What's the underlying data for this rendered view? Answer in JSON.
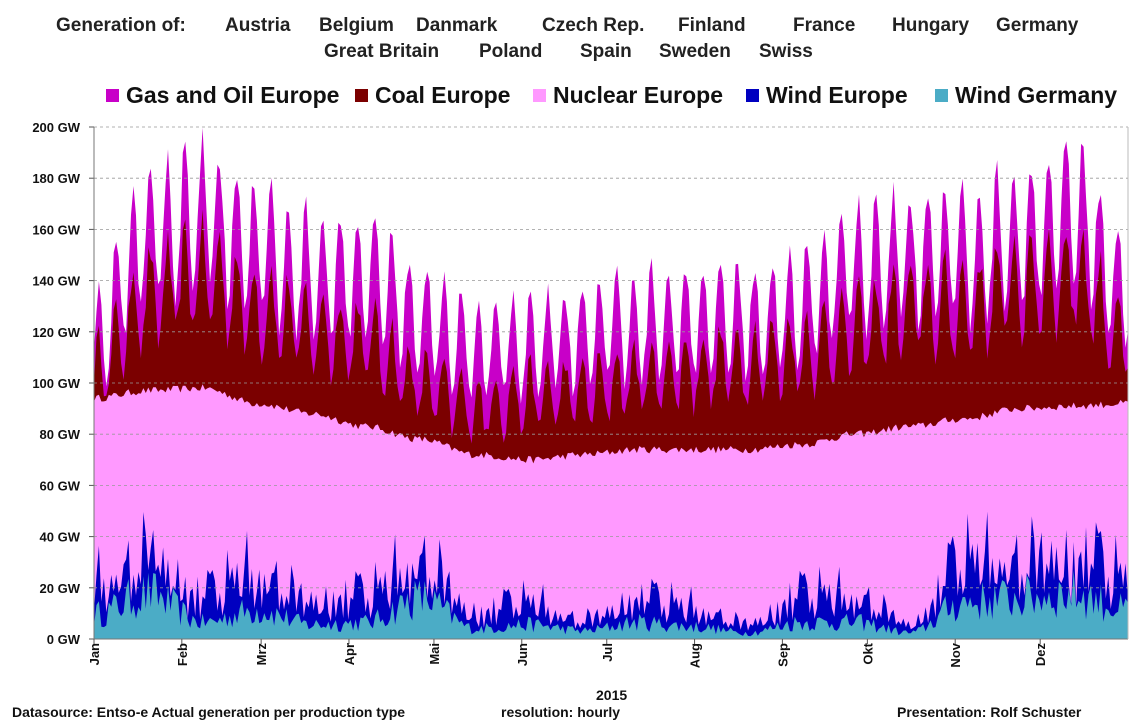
{
  "header": {
    "generation_label": "Generation of:",
    "countries": [
      "Austria",
      "Belgium",
      "Danmark",
      "Czech Rep.",
      "Finland",
      "France",
      "Hungary",
      "Germany",
      "Great Britain",
      "Poland",
      "Spain",
      "Sweden",
      "Swiss"
    ]
  },
  "colors": {
    "gas_oil": "#c800c8",
    "coal": "#7b0000",
    "nuclear": "#ff99ff",
    "wind_europe": "#0000c0",
    "wind_germany": "#4bacc6",
    "gridline": "#999999"
  },
  "footer": {
    "datasource": "Datasource: Entso-e  Actual generation per production type",
    "year": "2015",
    "resolution": "resolution: hourly",
    "presentation": "Presentation:  Rolf Schuster"
  },
  "chart_data": {
    "type": "area",
    "stacked": true,
    "title": "",
    "xlabel": "2015",
    "ylabel": "",
    "unit": "GW",
    "ylim": [
      0,
      200
    ],
    "yticks": [
      0,
      20,
      40,
      60,
      80,
      100,
      120,
      140,
      160,
      180,
      200
    ],
    "ytick_labels": [
      "0 GW",
      "20 GW",
      "40 GW",
      "60 GW",
      "80 GW",
      "100 GW",
      "120 GW",
      "140 GW",
      "160 GW",
      "180 GW",
      "200 GW"
    ],
    "x_tick_labels": [
      "Jan",
      "Feb",
      "Mrz",
      "Apr",
      "Mai",
      "Jun",
      "Jul",
      "Aug",
      "Sep",
      "Okt",
      "Nov",
      "Dez"
    ],
    "x_tick_day_of_year": [
      1,
      32,
      60,
      91,
      121,
      152,
      182,
      213,
      244,
      274,
      305,
      335
    ],
    "days_in_year": 365,
    "legend_position": "top",
    "legend": [
      "Gas and Oil Europe",
      "Coal Europe",
      "Nuclear Europe",
      "Wind Europe",
      "Wind Germany"
    ],
    "series": [
      {
        "name": "Gas and Oil Europe",
        "upper_envelope_gw": [
          140,
          190,
          200,
          182,
          172,
          170,
          152,
          135,
          138,
          142,
          148,
          150,
          150,
          156,
          175,
          180,
          180,
          190,
          200,
          165
        ]
      },
      {
        "name": "Coal Europe",
        "upper_envelope_gw": [
          120,
          155,
          165,
          150,
          140,
          135,
          115,
          105,
          110,
          112,
          118,
          122,
          125,
          130,
          140,
          150,
          150,
          160,
          165,
          135
        ]
      },
      {
        "name": "Nuclear Europe",
        "upper_envelope_gw": [
          94,
          97,
          98,
          92,
          88,
          83,
          78,
          72,
          70,
          72,
          74,
          74,
          74,
          76,
          80,
          83,
          86,
          90,
          91,
          92
        ]
      },
      {
        "name": "Wind Europe",
        "upper_envelope_gw": [
          28,
          42,
          22,
          34,
          20,
          22,
          40,
          14,
          18,
          10,
          20,
          16,
          8,
          22,
          22,
          8,
          38,
          40,
          42,
          30
        ]
      },
      {
        "name": "Wind Germany",
        "upper_envelope_gw": [
          12,
          22,
          8,
          14,
          7,
          8,
          20,
          5,
          7,
          4,
          8,
          6,
          3,
          8,
          8,
          3,
          18,
          20,
          22,
          14
        ]
      }
    ]
  }
}
